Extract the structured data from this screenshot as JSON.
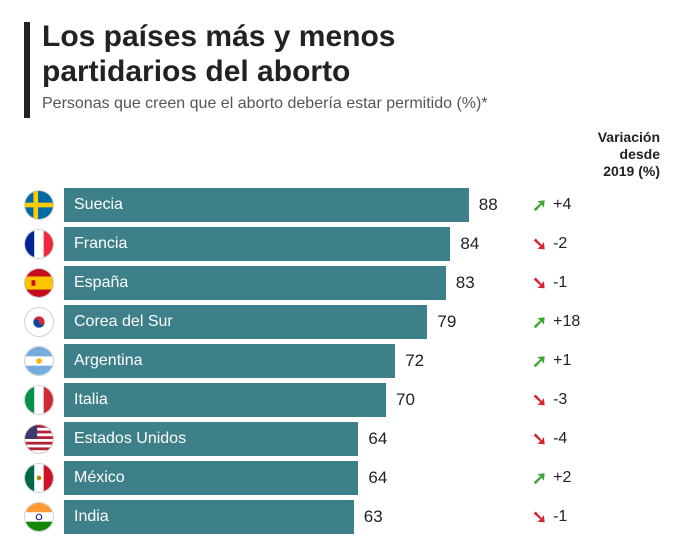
{
  "chart": {
    "title_line1": "Los países más y menos",
    "title_line2": "partidarios del aborto",
    "subtitle": "Personas que creen que el aborto debería estar permitido (%)*",
    "variation_header_l1": "Variación",
    "variation_header_l2": "desde",
    "variation_header_l3": "2019 (%)",
    "bar_color": "#3d8089",
    "up_color": "#3fa535",
    "down_color": "#d9232e",
    "title_color": "#222222",
    "accent_color": "#222222",
    "xmax": 100,
    "bar_area_width": 460,
    "rows": [
      {
        "country": "Suecia",
        "value": 88,
        "variation": 4,
        "direction": "up",
        "flag_svg": "<svg viewBox='0 0 30 30'><rect width='30' height='30' fill='#006aa7'/><rect x='9' y='0' width='5' height='30' fill='#fecc00'/><rect x='0' y='12.5' width='30' height='5' fill='#fecc00'/></svg>"
      },
      {
        "country": "Francia",
        "value": 84,
        "variation": -2,
        "direction": "down",
        "flag_svg": "<svg viewBox='0 0 30 30'><rect x='0' width='10' height='30' fill='#002395'/><rect x='10' width='10' height='30' fill='#ffffff'/><rect x='20' width='10' height='30' fill='#ed2939'/></svg>"
      },
      {
        "country": "España",
        "value": 83,
        "variation": -1,
        "direction": "down",
        "flag_svg": "<svg viewBox='0 0 30 30'><rect width='30' height='30' fill='#c60b1e'/><rect y='8' width='30' height='14' fill='#ffc400'/><rect x='7' y='12' width='4' height='6' fill='#c60b1e'/></svg>"
      },
      {
        "country": "Corea del Sur",
        "value": 79,
        "variation": 18,
        "direction": "up",
        "flag_svg": "<svg viewBox='0 0 30 30'><rect width='30' height='30' fill='#ffffff'/><circle cx='15' cy='15' r='6' fill='#cd2e3a'/><path d='M9,15 a6,6 0 0,0 12,0 a3,3 0 0,1 -6,0 a3,3 0 0,0 -6,0' fill='#0047a0'/></svg>"
      },
      {
        "country": "Argentina",
        "value": 72,
        "variation": 1,
        "direction": "up",
        "flag_svg": "<svg viewBox='0 0 30 30'><rect width='30' height='30' fill='#74acdf'/><rect y='10' width='30' height='10' fill='#ffffff'/><circle cx='15' cy='15' r='3' fill='#f6b40e'/></svg>"
      },
      {
        "country": "Italia",
        "value": 70,
        "variation": -3,
        "direction": "down",
        "flag_svg": "<svg viewBox='0 0 30 30'><rect x='0' width='10' height='30' fill='#009246'/><rect x='10' width='10' height='30' fill='#ffffff'/><rect x='20' width='10' height='30' fill='#ce2b37'/></svg>"
      },
      {
        "country": "Estados Unidos",
        "value": 64,
        "variation": -4,
        "direction": "down",
        "flag_svg": "<svg viewBox='0 0 30 30'><rect width='30' height='30' fill='#b22234'/><rect y='3' width='30' height='3' fill='#fff'/><rect y='9' width='30' height='3' fill='#fff'/><rect y='15' width='30' height='3' fill='#fff'/><rect y='21' width='30' height='3' fill='#fff'/><rect y='27' width='30' height='3' fill='#fff'/><rect width='13' height='15' fill='#3c3b6e'/></svg>"
      },
      {
        "country": "México",
        "value": 64,
        "variation": 2,
        "direction": "up",
        "flag_svg": "<svg viewBox='0 0 30 30'><rect x='0' width='10' height='30' fill='#006847'/><rect x='10' width='10' height='30' fill='#ffffff'/><rect x='20' width='10' height='30' fill='#ce1126'/><circle cx='15' cy='15' r='2.5' fill='#b8860b'/></svg>"
      },
      {
        "country": "India",
        "value": 63,
        "variation": -1,
        "direction": "down",
        "flag_svg": "<svg viewBox='0 0 30 30'><rect width='30' height='10' fill='#ff9933'/><rect y='10' width='30' height='10' fill='#ffffff'/><rect y='20' width='30' height='10' fill='#138808'/><circle cx='15' cy='15' r='3' fill='none' stroke='#000080' stroke-width='1'/></svg>"
      }
    ]
  }
}
